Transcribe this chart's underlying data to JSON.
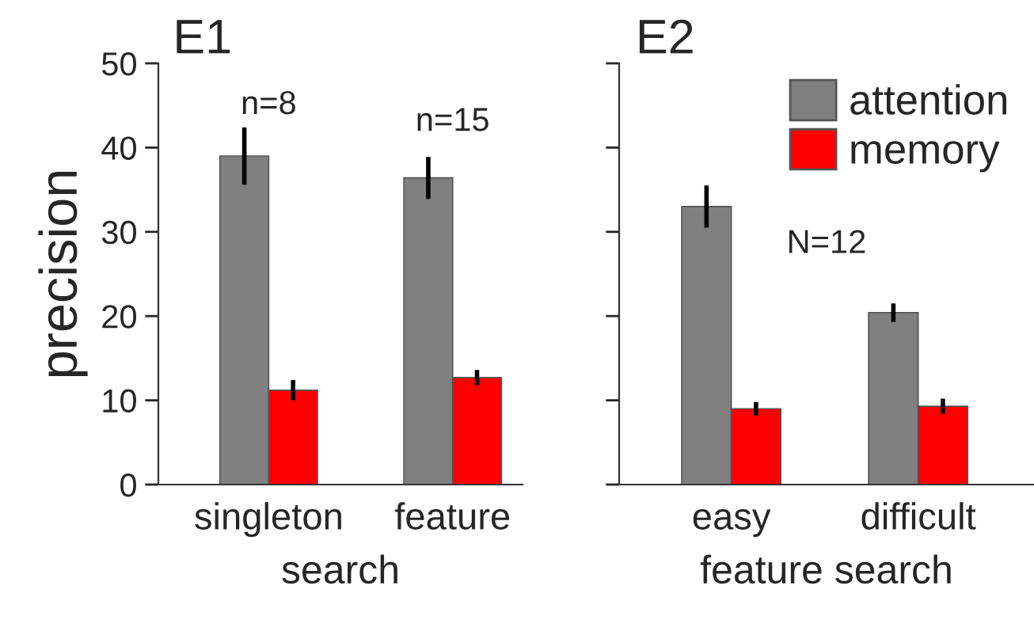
{
  "chart_data": [
    {
      "type": "bar",
      "title": "E1",
      "xlabel": "search",
      "ylabel": "precision",
      "categories": [
        "singleton",
        "feature"
      ],
      "series": [
        {
          "color": "#808080",
          "values": [
            39.0,
            36.4
          ],
          "errors": [
            3.4,
            2.5
          ]
        },
        {
          "color": "#ff0000",
          "values": [
            11.2,
            12.7
          ],
          "errors": [
            1.2,
            0.9
          ]
        }
      ],
      "ylim": [
        0,
        50
      ],
      "yticks": [
        0,
        10,
        20,
        30,
        40,
        50
      ],
      "grid": false,
      "legend": false,
      "annotations": [
        "n=8",
        "n=15"
      ]
    },
    {
      "type": "bar",
      "title": "E2",
      "xlabel": "feature search",
      "categories": [
        "easy",
        "difficult"
      ],
      "series": [
        {
          "name": "attention",
          "color": "#808080",
          "values": [
            33.0,
            20.4
          ],
          "errors": [
            2.5,
            1.1
          ]
        },
        {
          "name": "memory",
          "color": "#ff0000",
          "values": [
            9.0,
            9.3
          ],
          "errors": [
            0.8,
            0.9
          ]
        }
      ],
      "ylim": [
        0,
        50
      ],
      "yticks": [
        0,
        10,
        20,
        30,
        40,
        50
      ],
      "tick_labels": "x",
      "grid": false,
      "legend": "top right",
      "annotations": [
        "N=12"
      ]
    }
  ]
}
